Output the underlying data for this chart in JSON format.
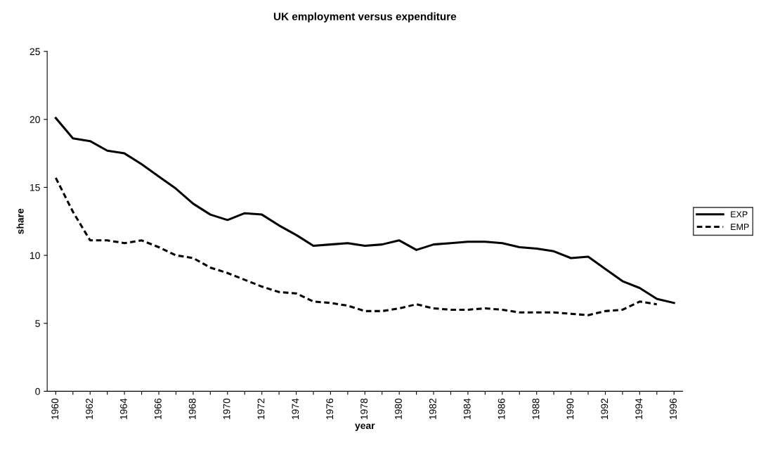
{
  "chart_data": {
    "type": "line",
    "title": "UK employment versus expenditure",
    "xlabel": "year",
    "ylabel": "share",
    "categories": [
      "1960",
      null,
      "1962",
      null,
      "1964",
      null,
      "1966",
      null,
      "1968",
      null,
      "1970",
      null,
      "1972",
      null,
      "1974",
      null,
      "1976",
      null,
      "1978",
      null,
      "1980",
      null,
      "1982",
      null,
      "1984",
      null,
      "1986",
      null,
      "1988",
      null,
      "1990",
      null,
      "1992",
      null,
      "1994",
      null,
      "1996"
    ],
    "series": [
      {
        "name": "EXP",
        "color": "#000000",
        "line_style": "solid",
        "values": [
          20.1,
          18.6,
          18.4,
          17.7,
          17.5,
          16.7,
          15.8,
          14.9,
          13.8,
          13.0,
          12.6,
          13.1,
          13.0,
          12.2,
          11.5,
          10.7,
          10.8,
          10.9,
          10.7,
          10.8,
          11.1,
          10.4,
          10.8,
          10.9,
          11.0,
          11.0,
          10.9,
          10.6,
          10.5,
          10.3,
          9.8,
          9.9,
          9.0,
          8.1,
          7.6,
          6.8,
          6.5
        ]
      },
      {
        "name": "EMP",
        "color": "#000000",
        "line_style": "dashed",
        "values": [
          15.7,
          13.2,
          11.1,
          11.1,
          10.9,
          11.1,
          10.6,
          10.0,
          9.8,
          9.1,
          8.7,
          8.2,
          7.7,
          7.3,
          7.2,
          6.6,
          6.5,
          6.3,
          5.9,
          5.9,
          6.1,
          6.4,
          6.1,
          6.0,
          6.0,
          6.1,
          6.0,
          5.8,
          5.8,
          5.8,
          5.7,
          5.6,
          5.9,
          6.0,
          6.6,
          6.4,
          null
        ]
      }
    ],
    "ylim": [
      0,
      25
    ],
    "yticks": [
      0,
      5,
      10,
      15,
      20,
      25
    ],
    "grid": false,
    "legend": "right",
    "marker": "none"
  }
}
